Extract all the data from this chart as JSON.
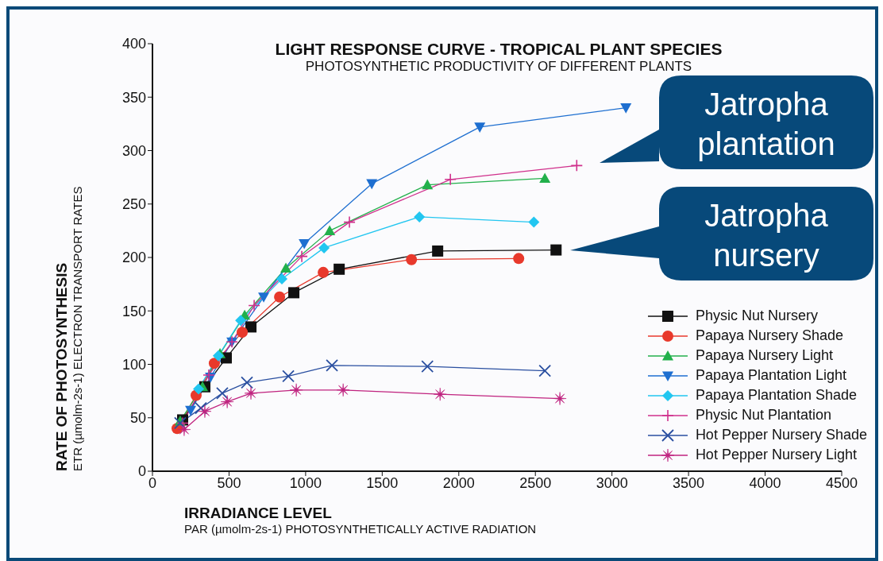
{
  "chart_data": {
    "type": "line",
    "title": "LIGHT RESPONSE CURVE - TROPICAL PLANT SPECIES",
    "subtitle": "PHOTOSYNTHETIC PRODUCTIVITY OF DIFFERENT PLANTS",
    "xlabel": "IRRADIANCE LEVEL\nPAR (µmolm-2s-1)  PHOTOSYNTHETICALLY ACTIVE RADIATION",
    "ylabel": "RATE OF PHOTOSYNTHESIS\nETR (µmolm-2s-1) ELECTRON TRANSPORT RATES",
    "xlim": [
      0,
      4500
    ],
    "xticks": [
      0,
      500,
      1000,
      1500,
      2000,
      2500,
      3000,
      3500,
      4000,
      4500
    ],
    "ylim": [
      0,
      400
    ],
    "yticks": [
      0,
      50,
      100,
      150,
      200,
      250,
      300,
      350,
      400
    ],
    "grid": false,
    "legend": "bottom right",
    "line_style": "solid",
    "series": [
      {
        "name": "Physic Nut Nursery",
        "color": "#111111",
        "marker": "square",
        "x": [
          197,
          342,
          482,
          643,
          923,
          1219,
          1862,
          2635
        ],
        "values": [
          48,
          79,
          106,
          135,
          167,
          189,
          206,
          207
        ]
      },
      {
        "name": "Papaya Nursery Shade",
        "color": "#e8392c",
        "marker": "circle",
        "x": [
          161,
          285,
          404,
          586,
          830,
          1115,
          1691,
          2391
        ],
        "values": [
          40,
          71,
          101,
          130,
          163,
          186,
          198,
          199
        ]
      },
      {
        "name": "Papaya Nursery Light",
        "color": "#22b04b",
        "marker": "triangle",
        "x": [
          181,
          327,
          441,
          602,
          871,
          1157,
          1795,
          2562
        ],
        "values": [
          47,
          79,
          110,
          146,
          190,
          225,
          268,
          274
        ]
      },
      {
        "name": "Papaya Plantation Light",
        "color": "#1e6fd0",
        "marker": "triangle-down",
        "x": [
          249,
          379,
          519,
          726,
          991,
          1432,
          2137,
          3091
        ],
        "values": [
          57,
          88,
          121,
          163,
          213,
          269,
          322,
          340
        ]
      },
      {
        "name": "Papaya Plantation Shade",
        "color": "#22c6f0",
        "marker": "diamond",
        "x": [
          301,
          430,
          576,
          845,
          1120,
          1743,
          2490
        ],
        "values": [
          77,
          108,
          141,
          180,
          209,
          238,
          233
        ]
      },
      {
        "name": "Physic Nut Plantation",
        "color": "#d0308c",
        "marker": "plus",
        "x": [
          197,
          368,
          519,
          664,
          975,
          1286,
          1945,
          2770
        ],
        "values": [
          45,
          90,
          121,
          155,
          201,
          233,
          273,
          286
        ]
      },
      {
        "name": "Hot Pepper Nursery Shade",
        "color": "#2a4fa0",
        "marker": "cross",
        "x": [
          181,
          316,
          456,
          617,
          887,
          1172,
          1795,
          2562
        ],
        "values": [
          45,
          59,
          73,
          83,
          89,
          99,
          98,
          94
        ]
      },
      {
        "name": "Hot Pepper Nursery Light",
        "color": "#c0237f",
        "marker": "star",
        "x": [
          207,
          342,
          488,
          643,
          939,
          1245,
          1878,
          2660
        ],
        "values": [
          39,
          56,
          65,
          73,
          76,
          76,
          72,
          68
        ]
      }
    ],
    "annotations": [
      "Jatropha plantation",
      "Jatropha nursery"
    ]
  }
}
